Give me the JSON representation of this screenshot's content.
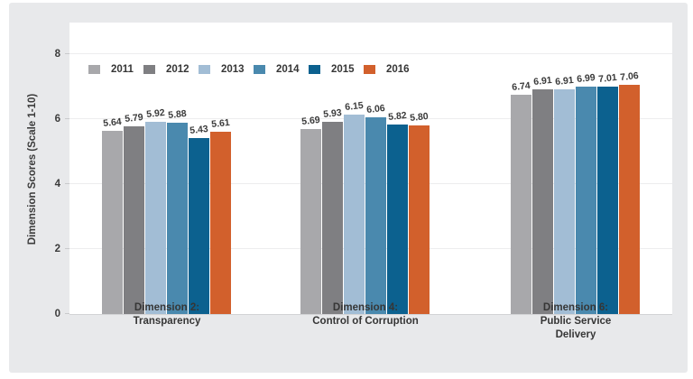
{
  "card": {
    "background": "#e8e9eb"
  },
  "chart_data": {
    "type": "bar",
    "title": "",
    "xlabel": "",
    "ylabel": "Dimension Scores (Scale 1-10)",
    "ylim": [
      0,
      8
    ],
    "y_ticks": [
      0,
      2,
      4,
      6,
      8
    ],
    "grid": true,
    "legend_position": "top-left-inside",
    "value_label_format": "0.00",
    "categories": [
      {
        "lines": [
          "Dimension 2:",
          "Transparency"
        ]
      },
      {
        "lines": [
          "Dimension 4:",
          "Control of Corruption"
        ]
      },
      {
        "lines": [
          "Dimension 6:",
          "Public Service",
          "Delivery"
        ]
      }
    ],
    "series": [
      {
        "name": "2011",
        "color": "#a8a8ab",
        "values": [
          5.64,
          5.69,
          6.74
        ]
      },
      {
        "name": "2012",
        "color": "#7f7f82",
        "values": [
          5.79,
          5.93,
          6.91
        ]
      },
      {
        "name": "2013",
        "color": "#a2bdd5",
        "values": [
          5.92,
          6.15,
          6.91
        ]
      },
      {
        "name": "2014",
        "color": "#4a89ae",
        "values": [
          5.88,
          6.06,
          6.99
        ]
      },
      {
        "name": "2015",
        "color": "#0c618f",
        "values": [
          5.43,
          5.82,
          7.01
        ]
      },
      {
        "name": "2016",
        "color": "#d2602c",
        "values": [
          5.61,
          5.8,
          7.06
        ]
      }
    ]
  }
}
